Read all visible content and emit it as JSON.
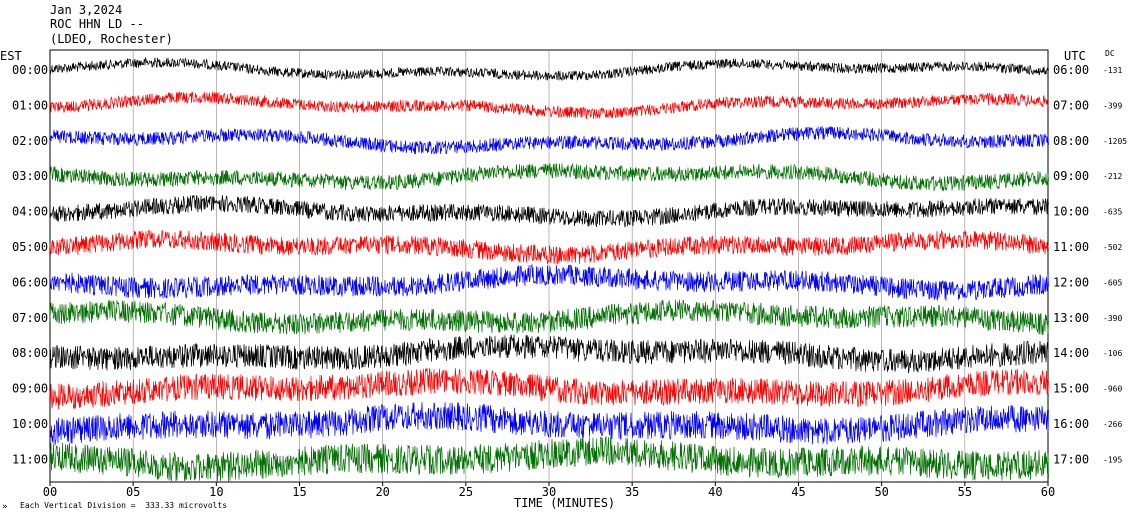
{
  "header": {
    "date": "Jan 3,2024",
    "station": "ROC HHN LD --",
    "network": "(LDEO, Rochester)"
  },
  "left_axis_label": "EST",
  "right_axis_label": "UTC",
  "dc_label": "DC",
  "x_axis_title": "TIME (MINUTES)",
  "footer_scale": "Each Vertical Division =  333.33 microvolts",
  "footer_mark": "»",
  "colors": {
    "black": "#000000",
    "red": "#ff0000",
    "blue": "#0000ff",
    "green": "#007000"
  },
  "chart_data": {
    "type": "line",
    "xlim": [
      0,
      60
    ],
    "x_ticks": [
      "00",
      "05",
      "10",
      "15",
      "20",
      "25",
      "30",
      "35",
      "40",
      "45",
      "50",
      "55",
      "60"
    ],
    "rows": [
      {
        "est": "00:00",
        "utc": "06:00",
        "dc": "-131",
        "color": "black"
      },
      {
        "est": "01:00",
        "utc": "07:00",
        "dc": "-399",
        "color": "red"
      },
      {
        "est": "02:00",
        "utc": "08:00",
        "dc": "-1205",
        "color": "blue"
      },
      {
        "est": "03:00",
        "utc": "09:00",
        "dc": "-212",
        "color": "green"
      },
      {
        "est": "04:00",
        "utc": "10:00",
        "dc": "-635",
        "color": "black"
      },
      {
        "est": "05:00",
        "utc": "11:00",
        "dc": "-502",
        "color": "red"
      },
      {
        "est": "06:00",
        "utc": "12:00",
        "dc": "-605",
        "color": "blue"
      },
      {
        "est": "07:00",
        "utc": "13:00",
        "dc": "-390",
        "color": "green"
      },
      {
        "est": "08:00",
        "utc": "14:00",
        "dc": "-106",
        "color": "black"
      },
      {
        "est": "09:00",
        "utc": "15:00",
        "dc": "-960",
        "color": "red"
      },
      {
        "est": "10:00",
        "utc": "16:00",
        "dc": "-266",
        "color": "blue"
      },
      {
        "est": "11:00",
        "utc": "17:00",
        "dc": "-195",
        "color": "green"
      }
    ],
    "grid": true
  }
}
